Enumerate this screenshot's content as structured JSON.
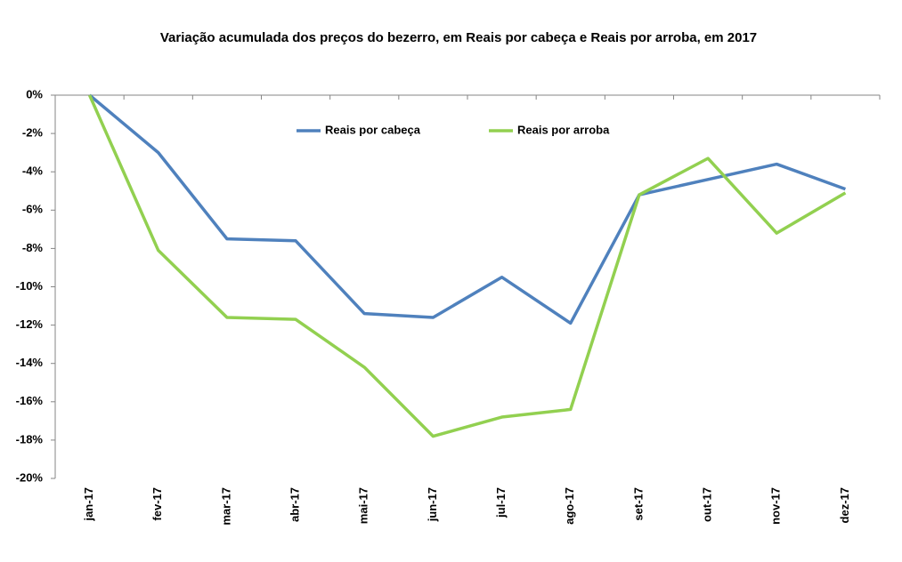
{
  "chart_data": {
    "type": "line",
    "title": "Variação acumulada dos preços do bezerro, em Reais por cabeça e Reais por arroba, em 2017",
    "categories": [
      "jan-17",
      "fev-17",
      "mar-17",
      "abr-17",
      "mai-17",
      "jun-17",
      "jul-17",
      "ago-17",
      "set-17",
      "out-17",
      "nov-17",
      "dez-17"
    ],
    "series": [
      {
        "name": "Reais por cabeça",
        "color": "#4f81bd",
        "values": [
          0,
          -3.0,
          -7.5,
          -7.6,
          -11.4,
          -11.6,
          -9.5,
          -11.9,
          -5.2,
          -4.4,
          -3.6,
          -4.9
        ]
      },
      {
        "name": "Reais por arroba",
        "color": "#92d050",
        "values": [
          0,
          -8.1,
          -11.6,
          -11.7,
          -14.2,
          -17.8,
          -16.8,
          -16.4,
          -5.2,
          -3.3,
          -7.2,
          -5.1
        ]
      }
    ],
    "ylim": [
      -20,
      0
    ],
    "yticks": [
      {
        "value": 0,
        "label": "0%"
      },
      {
        "value": -2,
        "label": "-2%"
      },
      {
        "value": -4,
        "label": "-4%"
      },
      {
        "value": -6,
        "label": "-6%"
      },
      {
        "value": -8,
        "label": "-8%"
      },
      {
        "value": -10,
        "label": "-10%"
      },
      {
        "value": -12,
        "label": "-12%"
      },
      {
        "value": -14,
        "label": "-14%"
      },
      {
        "value": -16,
        "label": "-16%"
      },
      {
        "value": -18,
        "label": "-18%"
      },
      {
        "value": -20,
        "label": "-20%"
      }
    ],
    "grid": false,
    "legend": "top"
  }
}
